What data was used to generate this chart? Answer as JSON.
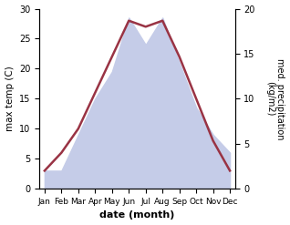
{
  "months": [
    "Jan",
    "Feb",
    "Mar",
    "Apr",
    "May",
    "Jun",
    "Jul",
    "Aug",
    "Sep",
    "Oct",
    "Nov",
    "Dec"
  ],
  "month_positions": [
    0,
    1,
    2,
    3,
    4,
    5,
    6,
    7,
    8,
    9,
    10,
    11
  ],
  "temperature": [
    3,
    6,
    10,
    16,
    22,
    28,
    27,
    28,
    22,
    15,
    8,
    3
  ],
  "precipitation": [
    2,
    2,
    6,
    10,
    13,
    19,
    16,
    19,
    14,
    9,
    6,
    4
  ],
  "temp_color": "#993344",
  "precip_fill_color": "#c5cce8",
  "temp_ylim": [
    0,
    30
  ],
  "precip_ylim": [
    0,
    20
  ],
  "xlabel": "date (month)",
  "ylabel_left": "max temp (C)",
  "ylabel_right": "med. precipitation\n(kg/m2)",
  "temp_linewidth": 1.8
}
